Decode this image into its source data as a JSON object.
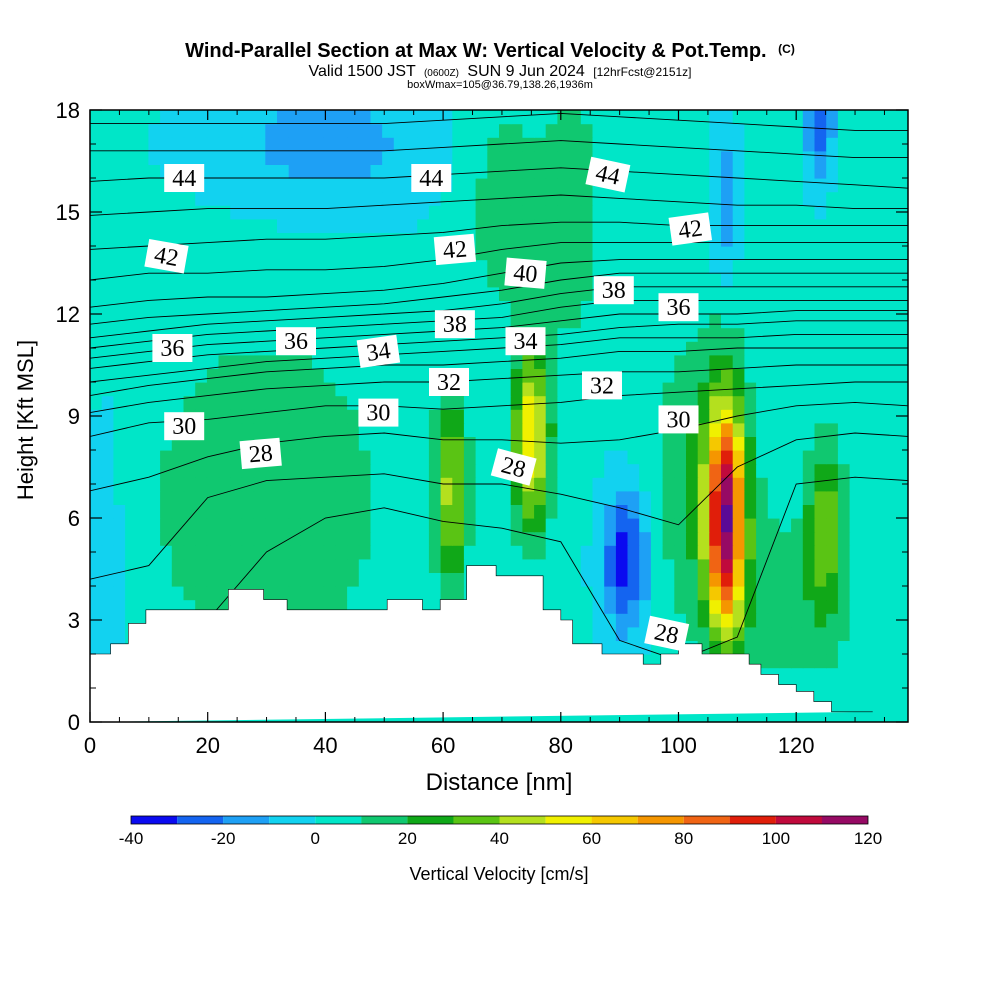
{
  "header": {
    "title": "Wind-Parallel Section at Max W: Vertical Velocity & Pot.Temp.",
    "title_tag": "(C)",
    "valid_prefix": "Valid 1500 JST",
    "valid_utc": "(0600Z)",
    "valid_date": "SUN 9 Jun 2024",
    "forecast": "[12hrFcst@2151z]",
    "boxinfo": "boxWmax=105@36.79,138.26,1936m"
  },
  "chart_data": {
    "type": "heatmap",
    "xlabel": "Distance [nm]",
    "ylabel": "Height [Kft MSL]",
    "xlim": [
      0,
      139
    ],
    "ylim": [
      0,
      18
    ],
    "x_ticks": [
      "0",
      "20",
      "40",
      "60",
      "80",
      "100",
      "120"
    ],
    "y_ticks": [
      "0",
      "3",
      "6",
      "9",
      "12",
      "15",
      "18"
    ],
    "colorbar": {
      "label": "Vertical Velocity [cm/s]",
      "levels": [
        -40,
        -30,
        -20,
        -10,
        0,
        10,
        20,
        30,
        40,
        50,
        60,
        70,
        80,
        90,
        100,
        110,
        120
      ],
      "tick_labels": [
        "-40",
        "-20",
        "0",
        "20",
        "40",
        "60",
        "80",
        "100",
        "120"
      ],
      "colors": [
        "#0a0af0",
        "#1464f0",
        "#1ea0f5",
        "#12d2f0",
        "#00e6c8",
        "#10c870",
        "#10a818",
        "#5ac414",
        "#b4e01e",
        "#f0f000",
        "#f5c800",
        "#f59600",
        "#f06414",
        "#e01e0a",
        "#c00a3c",
        "#960a64",
        "#5a0a96"
      ]
    },
    "background_w_cms": 2,
    "w_features": [
      {
        "x": 108,
        "y": 6.0,
        "peak_w": 105,
        "sx": 2.2,
        "sy": 2.3
      },
      {
        "x": 75,
        "y": 8.4,
        "peak_w": 58,
        "sx": 2.2,
        "sy": 1.9
      },
      {
        "x": 61.5,
        "y": 6.8,
        "peak_w": 42,
        "sx": 1.8,
        "sy": 1.9
      },
      {
        "x": 91,
        "y": 4.8,
        "peak_w": -38,
        "sx": 2.8,
        "sy": 1.5
      },
      {
        "x": 125,
        "y": 5.8,
        "peak_w": 33,
        "sx": 2.2,
        "sy": 1.8
      },
      {
        "x": 104,
        "y": 7.5,
        "peak_w": 18,
        "sx": 6,
        "sy": 3
      },
      {
        "x": 70,
        "y": 15.5,
        "peak_w": 14,
        "sx": 5,
        "sy": 2.5
      },
      {
        "x": 82,
        "y": 15,
        "peak_w": 14,
        "sx": 4,
        "sy": 3
      },
      {
        "x": 30,
        "y": 6.5,
        "peak_w": 15,
        "sx": 16,
        "sy": 4
      },
      {
        "x": 118,
        "y": 3.5,
        "peak_w": 12,
        "sx": 10,
        "sy": 2
      },
      {
        "x": 108,
        "y": 15.2,
        "peak_w": -20,
        "sx": 1.6,
        "sy": 1.5
      },
      {
        "x": 124,
        "y": 17.8,
        "peak_w": -32,
        "sx": 1.6,
        "sy": 1.2
      },
      {
        "x": 40,
        "y": 17,
        "peak_w": -16,
        "sx": 15,
        "sy": 1.5
      },
      {
        "x": 2.5,
        "y": 6,
        "peak_w": -10,
        "sx": 2,
        "sy": 3
      },
      {
        "x": 5,
        "y": 4,
        "peak_w": -6,
        "sx": 3,
        "sy": 1.5
      }
    ],
    "terrain": {
      "x": [
        0,
        3.5,
        3.5,
        6.5,
        6.5,
        9.5,
        9.5,
        23.5,
        23.5,
        29.5,
        29.5,
        33.5,
        33.5,
        50.5,
        50.5,
        56.5,
        56.5,
        59.5,
        59.5,
        64,
        64,
        69,
        69,
        77,
        77,
        80,
        80,
        82,
        82,
        87,
        87,
        94,
        94,
        97,
        97,
        100,
        100,
        104,
        104,
        112,
        112,
        114,
        114,
        117,
        117,
        120,
        120,
        123,
        123,
        126,
        126,
        130,
        130,
        133,
        133,
        139
      ],
      "y": [
        2.0,
        2.0,
        2.3,
        2.3,
        2.9,
        2.9,
        3.3,
        3.3,
        3.9,
        3.9,
        3.6,
        3.6,
        3.3,
        3.3,
        3.6,
        3.6,
        3.3,
        3.3,
        3.6,
        3.6,
        4.6,
        4.6,
        4.3,
        4.3,
        3.3,
        3.3,
        3.0,
        3.0,
        2.3,
        2.3,
        2.0,
        2.0,
        1.7,
        1.7,
        2.0,
        2.0,
        2.3,
        2.3,
        2.0,
        2.0,
        1.7,
        1.7,
        1.4,
        1.4,
        1.1,
        1.1,
        0.9,
        0.9,
        0.6,
        0.6,
        0.3,
        0.3,
        0.3,
        0.3
      ]
    },
    "theta_contours": [
      {
        "level": 28,
        "label": "28",
        "y": [
          0.8,
          1.2,
          3.0,
          5.0,
          6.0,
          6.3,
          5.9,
          5.7,
          5.3,
          2.4,
          1.8,
          2.5,
          7.0,
          7.2,
          7.1
        ]
      },
      {
        "level": 29,
        "y": [
          4.2,
          4.6,
          6.6,
          7.1,
          7.2,
          7.3,
          7.0,
          7.0,
          6.7,
          6.3,
          5.8,
          7.5,
          8.3,
          8.5,
          8.4
        ]
      },
      {
        "level": 30,
        "label": "30",
        "y": [
          6.8,
          7.2,
          7.8,
          8.2,
          8.4,
          8.5,
          8.3,
          8.3,
          8.2,
          8.3,
          8.6,
          9.0,
          9.3,
          9.4,
          9.3
        ]
      },
      {
        "level": 31,
        "y": [
          8.4,
          8.8,
          8.9,
          9.1,
          9.3,
          9.3,
          9.2,
          9.3,
          9.4,
          9.6,
          9.7,
          9.8,
          9.9,
          10.0,
          10.0
        ]
      },
      {
        "level": 32,
        "label": "32",
        "y": [
          9.1,
          9.4,
          9.6,
          9.8,
          9.9,
          10.0,
          10.0,
          10.1,
          10.2,
          10.3,
          10.3,
          10.4,
          10.5,
          10.5,
          10.5
        ]
      },
      {
        "level": 33,
        "y": [
          9.6,
          9.9,
          10.1,
          10.3,
          10.4,
          10.5,
          10.5,
          10.6,
          10.7,
          10.9,
          10.9,
          11.0,
          11.0,
          11.0,
          11.0
        ]
      },
      {
        "level": 34,
        "label": "34",
        "y": [
          10.0,
          10.2,
          10.4,
          10.6,
          10.7,
          10.8,
          10.9,
          11.0,
          11.1,
          11.3,
          11.3,
          11.3,
          11.4,
          11.4,
          11.4
        ]
      },
      {
        "level": 35,
        "y": [
          10.4,
          10.6,
          10.8,
          10.9,
          11.0,
          11.1,
          11.2,
          11.3,
          11.4,
          11.6,
          11.7,
          11.7,
          11.8,
          11.8,
          11.8
        ]
      },
      {
        "level": 36,
        "label": "36",
        "y": [
          10.7,
          10.9,
          11.1,
          11.2,
          11.3,
          11.4,
          11.5,
          11.6,
          11.8,
          12.0,
          12.0,
          12.0,
          12.1,
          12.1,
          12.1
        ]
      },
      {
        "level": 37,
        "y": [
          11.0,
          11.2,
          11.4,
          11.5,
          11.6,
          11.7,
          11.8,
          11.9,
          12.2,
          12.4,
          12.4,
          12.4,
          12.4,
          12.4,
          12.4
        ]
      },
      {
        "level": 38,
        "label": "38",
        "y": [
          11.3,
          11.5,
          11.7,
          11.8,
          11.9,
          12.0,
          12.1,
          12.3,
          12.6,
          12.8,
          12.8,
          12.8,
          12.8,
          12.8,
          12.8
        ]
      },
      {
        "level": 39,
        "y": [
          11.7,
          11.9,
          12.0,
          12.1,
          12.2,
          12.3,
          12.5,
          12.7,
          13.0,
          13.2,
          13.2,
          13.2,
          13.2,
          13.2,
          13.2
        ]
      },
      {
        "level": 40,
        "label": "40",
        "y": [
          12.2,
          12.4,
          12.5,
          12.5,
          12.6,
          12.7,
          12.9,
          13.2,
          13.5,
          13.6,
          13.6,
          13.6,
          13.6,
          13.6,
          13.6
        ]
      },
      {
        "level": 41,
        "y": [
          13.0,
          13.2,
          13.2,
          13.3,
          13.3,
          13.4,
          13.6,
          13.9,
          14.1,
          14.1,
          14.1,
          14.1,
          14.1,
          14.1,
          14.1
        ]
      },
      {
        "level": 42,
        "label": "42",
        "y": [
          13.9,
          14.0,
          14.1,
          14.2,
          14.2,
          14.3,
          14.4,
          14.6,
          14.7,
          14.7,
          14.6,
          14.6,
          14.6,
          14.6,
          14.6
        ]
      },
      {
        "level": 43,
        "y": [
          14.9,
          15.0,
          15.1,
          15.1,
          15.1,
          15.2,
          15.3,
          15.4,
          15.5,
          15.4,
          15.3,
          15.2,
          15.2,
          15.1,
          15.1
        ]
      },
      {
        "level": 44,
        "label": "44",
        "y": [
          15.9,
          16.0,
          16.0,
          16.0,
          16.0,
          16.0,
          16.1,
          16.2,
          16.3,
          16.2,
          16.1,
          16.0,
          15.9,
          15.8,
          15.7
        ]
      },
      {
        "level": 45,
        "y": [
          16.8,
          16.8,
          16.8,
          16.8,
          16.8,
          16.8,
          16.9,
          17.0,
          17.1,
          17.0,
          16.9,
          16.8,
          16.7,
          16.6,
          16.6
        ]
      },
      {
        "level": 46,
        "y": [
          17.6,
          17.6,
          17.6,
          17.6,
          17.6,
          17.6,
          17.7,
          17.8,
          17.9,
          17.8,
          17.7,
          17.6,
          17.5,
          17.4,
          17.4
        ]
      }
    ],
    "contour_x": [
      0,
      10,
      20,
      30,
      40,
      50,
      60,
      70,
      80,
      90,
      100,
      110,
      120,
      130,
      139
    ],
    "contour_labels": [
      {
        "text": "44",
        "x": 16,
        "y": 16.0,
        "rot": 0
      },
      {
        "text": "44",
        "x": 58,
        "y": 16.0,
        "rot": 0
      },
      {
        "text": "44",
        "x": 88,
        "y": 16.1,
        "rot": 12
      },
      {
        "text": "42",
        "x": 13,
        "y": 13.7,
        "rot": 10
      },
      {
        "text": "42",
        "x": 62,
        "y": 13.9,
        "rot": -5
      },
      {
        "text": "42",
        "x": 102,
        "y": 14.5,
        "rot": -8
      },
      {
        "text": "40",
        "x": 74,
        "y": 13.2,
        "rot": 5
      },
      {
        "text": "38",
        "x": 62,
        "y": 11.7,
        "rot": 0
      },
      {
        "text": "38",
        "x": 89,
        "y": 12.7,
        "rot": 0
      },
      {
        "text": "36",
        "x": 14,
        "y": 11.0,
        "rot": 0
      },
      {
        "text": "36",
        "x": 35,
        "y": 11.2,
        "rot": 0
      },
      {
        "text": "36",
        "x": 100,
        "y": 12.2,
        "rot": 0
      },
      {
        "text": "34",
        "x": 49,
        "y": 10.9,
        "rot": -8
      },
      {
        "text": "34",
        "x": 74,
        "y": 11.2,
        "rot": 0
      },
      {
        "text": "32",
        "x": 61,
        "y": 10.0,
        "rot": 0
      },
      {
        "text": "32",
        "x": 87,
        "y": 9.9,
        "rot": 0
      },
      {
        "text": "30",
        "x": 16,
        "y": 8.7,
        "rot": 0
      },
      {
        "text": "30",
        "x": 49,
        "y": 9.1,
        "rot": 0
      },
      {
        "text": "30",
        "x": 100,
        "y": 8.9,
        "rot": 0
      },
      {
        "text": "28",
        "x": 29,
        "y": 7.9,
        "rot": -5
      },
      {
        "text": "28",
        "x": 72,
        "y": 7.5,
        "rot": 15
      },
      {
        "text": "28",
        "x": 98,
        "y": 2.6,
        "rot": 12
      }
    ]
  }
}
